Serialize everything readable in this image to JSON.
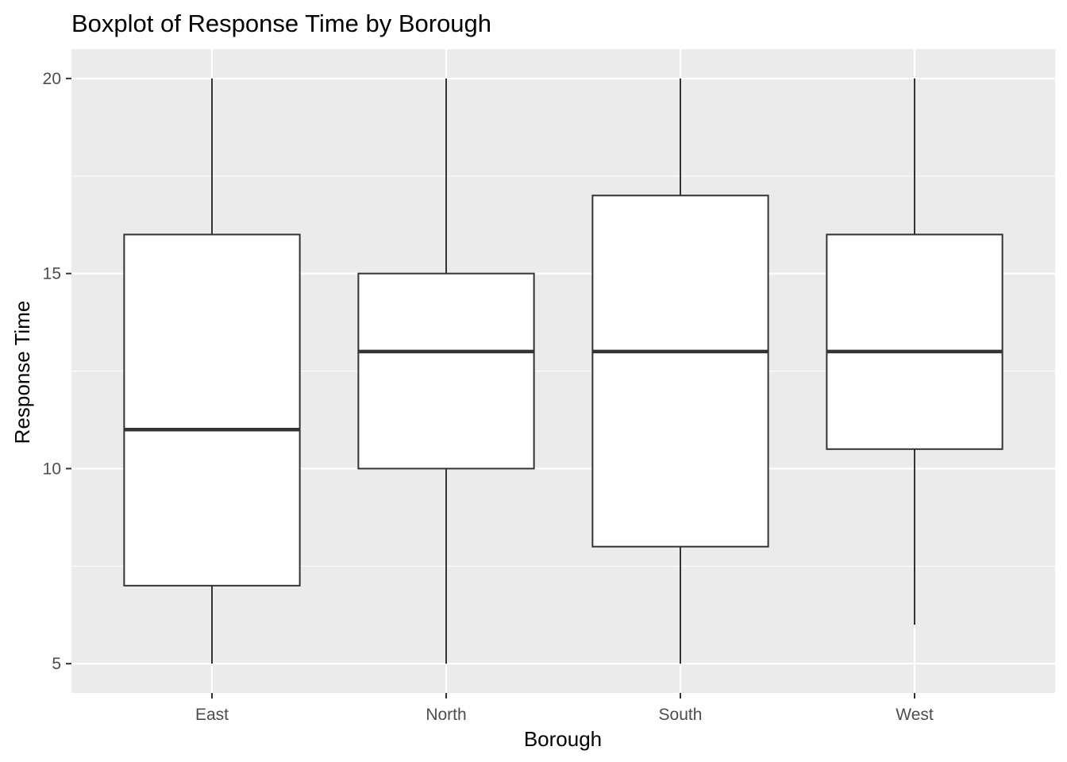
{
  "chart_data": {
    "type": "boxplot",
    "title": "Boxplot of Response Time by Borough",
    "xlabel": "Borough",
    "ylabel": "Response Time",
    "categories": [
      "East",
      "North",
      "South",
      "West"
    ],
    "boxes": [
      {
        "category": "East",
        "min": 5,
        "q1": 7,
        "median": 11,
        "q3": 16,
        "max": 20
      },
      {
        "category": "North",
        "min": 5,
        "q1": 10,
        "median": 13,
        "q3": 15,
        "max": 20
      },
      {
        "category": "South",
        "min": 5,
        "q1": 8,
        "median": 13,
        "q3": 17,
        "max": 20
      },
      {
        "category": "West",
        "min": 6,
        "q1": 10.5,
        "median": 13,
        "q3": 16,
        "max": 20
      }
    ],
    "yticks": [
      "5",
      "10",
      "15",
      "20"
    ],
    "ylim": [
      4.25,
      20.75
    ],
    "grid": true,
    "legend": "none",
    "colors": {
      "panel_background": "#ebebeb",
      "grid": "#ffffff",
      "box_fill": "#ffffff",
      "box_stroke": "#333333",
      "tick_label": "#4d4d4d",
      "tick_mark": "#333333"
    }
  }
}
